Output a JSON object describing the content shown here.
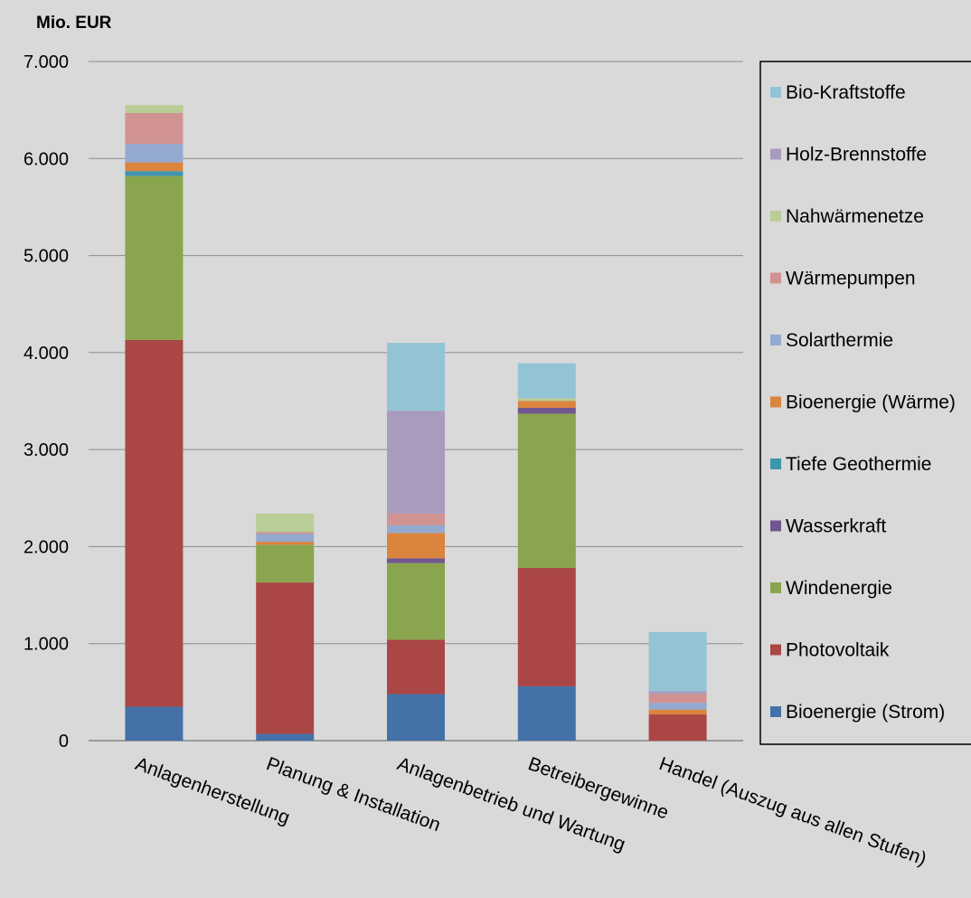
{
  "chart_data": {
    "type": "bar",
    "stacked": true,
    "unit_label": "Mio. EUR",
    "ylim": [
      0,
      7000
    ],
    "yticks": [
      0,
      1000,
      2000,
      3000,
      4000,
      5000,
      6000,
      7000
    ],
    "ytick_labels": [
      "0",
      "1.000",
      "2.000",
      "3.000",
      "4.000",
      "5.000",
      "6.000",
      "7.000"
    ],
    "grid": true,
    "legend_position": "right",
    "categories": [
      "Anlagenherstellung",
      "Planung & Installation",
      "Anlagenbetrieb und Wartung",
      "Betreibergewinne",
      "Handel (Auszug aus allen Stufen)"
    ],
    "series": [
      {
        "name": "Bioenergie (Strom)",
        "color": "#4472a8",
        "values": [
          350,
          70,
          480,
          560,
          0
        ]
      },
      {
        "name": "Photovoltaik",
        "color": "#aa4644",
        "values": [
          3780,
          1560,
          560,
          1220,
          270
        ]
      },
      {
        "name": "Windenergie",
        "color": "#89a54e",
        "values": [
          1690,
          390,
          790,
          1590,
          0
        ]
      },
      {
        "name": "Wasserkraft",
        "color": "#71578f",
        "values": [
          0,
          0,
          50,
          60,
          0
        ]
      },
      {
        "name": "Tiefe Geothermie",
        "color": "#3d96ae",
        "values": [
          50,
          0,
          0,
          0,
          0
        ]
      },
      {
        "name": "Bioenergie (Wärme)",
        "color": "#db843d",
        "values": [
          90,
          30,
          260,
          70,
          50
        ]
      },
      {
        "name": "Solarthermie",
        "color": "#93a9cf",
        "values": [
          190,
          80,
          80,
          0,
          70
        ]
      },
      {
        "name": "Wärmepumpen",
        "color": "#d19392",
        "values": [
          320,
          20,
          120,
          0,
          90
        ]
      },
      {
        "name": "Nahwärmenetze",
        "color": "#b9cd96",
        "values": [
          80,
          190,
          0,
          30,
          0
        ]
      },
      {
        "name": "Holz-Brennstoffe",
        "color": "#a99bbd",
        "values": [
          0,
          0,
          1060,
          0,
          30
        ]
      },
      {
        "name": "Bio-Kraftstoffe",
        "color": "#92c4d6",
        "values": [
          0,
          0,
          700,
          360,
          610
        ]
      }
    ]
  }
}
